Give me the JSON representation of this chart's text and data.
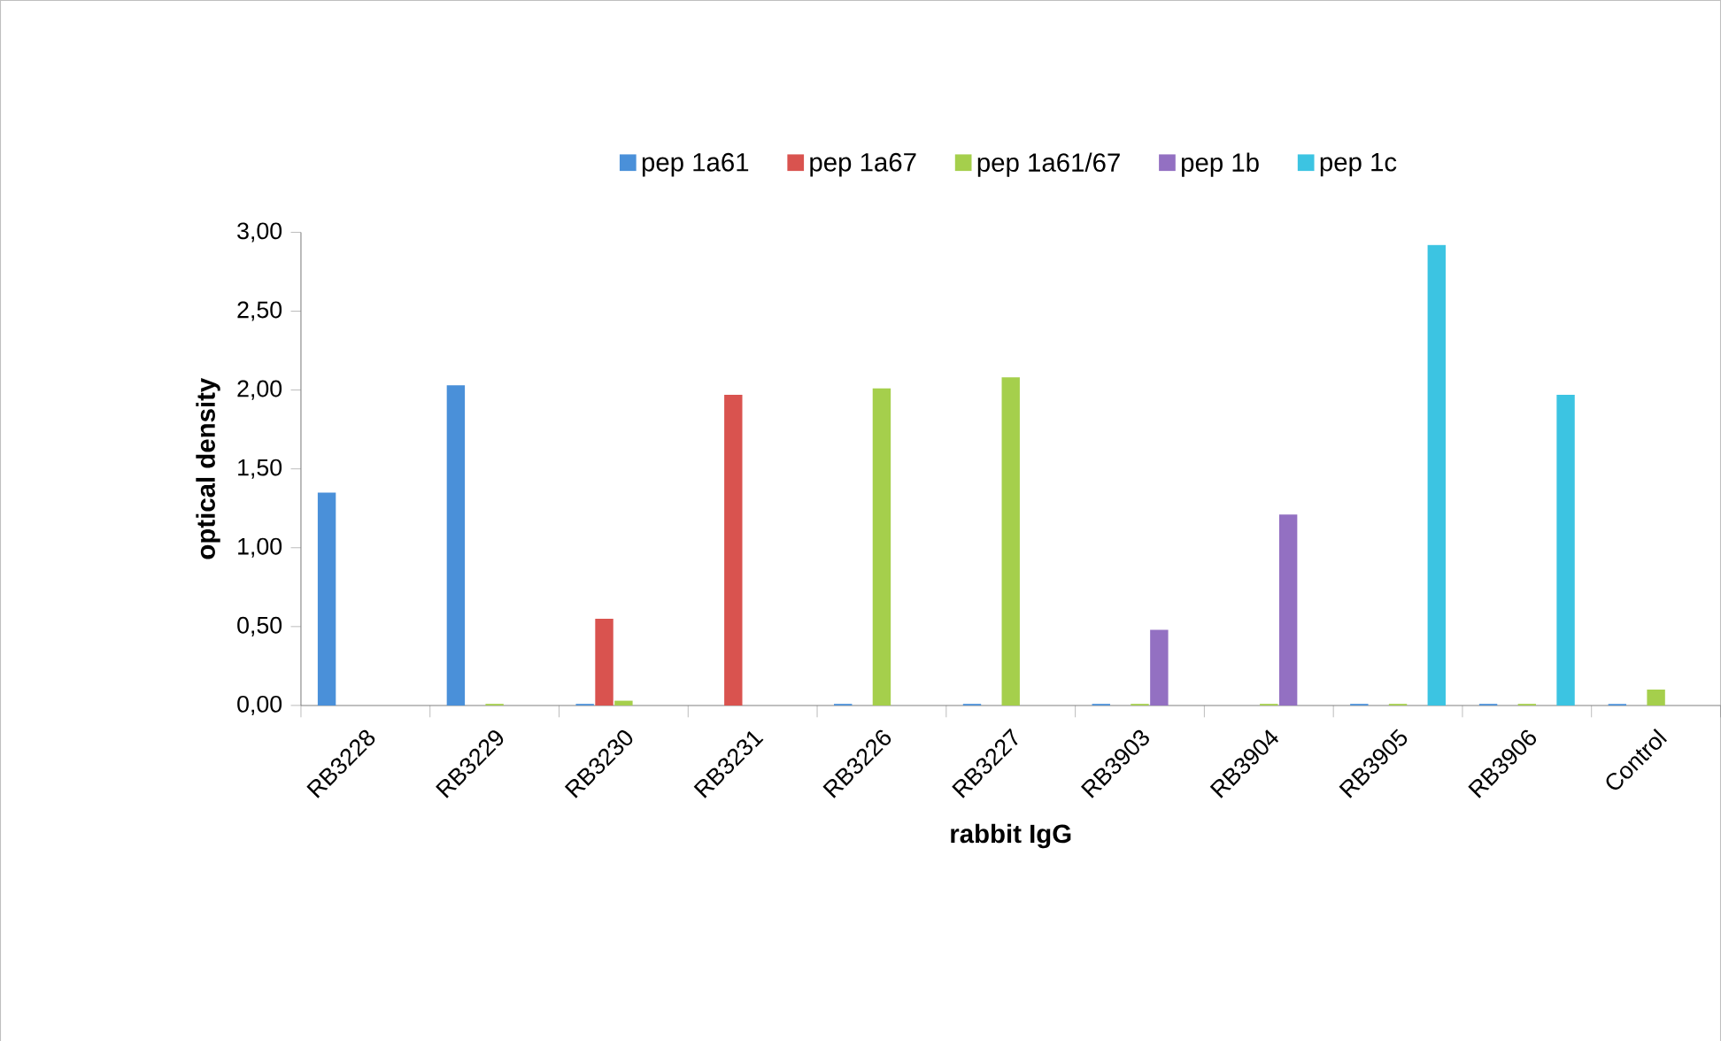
{
  "chart_data": {
    "type": "bar",
    "xlabel": "rabbit IgG",
    "ylabel": "optical density",
    "categories": [
      "RB3228",
      "RB3229",
      "RB3230",
      "RB3231",
      "RB3226",
      "RB3227",
      "RB3903",
      "RB3904",
      "RB3905",
      "RB3906",
      "Control"
    ],
    "series": [
      {
        "name": "pep 1a61",
        "color": "#4a90d9",
        "values": [
          1.35,
          2.03,
          0.01,
          0,
          0.01,
          0.01,
          0.01,
          0,
          0.01,
          0.01,
          0.01
        ]
      },
      {
        "name": "pep 1a67",
        "color": "#d9534f",
        "values": [
          0,
          0,
          0.55,
          1.97,
          0,
          0,
          0,
          0,
          0,
          0,
          0
        ]
      },
      {
        "name": "pep 1a61/67",
        "color": "#a5cf4c",
        "values": [
          0,
          0.01,
          0.03,
          0,
          2.01,
          2.08,
          0.01,
          0.01,
          0.01,
          0.01,
          0.1
        ]
      },
      {
        "name": "pep 1b",
        "color": "#9370c2",
        "values": [
          0,
          0,
          0,
          0,
          0,
          0,
          0.48,
          1.21,
          0,
          0,
          0
        ]
      },
      {
        "name": "pep 1c",
        "color": "#3cc4e2",
        "values": [
          0,
          0,
          0,
          0,
          0,
          0,
          0,
          0,
          2.92,
          1.97,
          0
        ]
      }
    ],
    "ylim": [
      0,
      3
    ],
    "yticks": [
      {
        "value": 0,
        "label": "0,00"
      },
      {
        "value": 0.5,
        "label": "0,50"
      },
      {
        "value": 1,
        "label": "1,00"
      },
      {
        "value": 1.5,
        "label": "1,50"
      },
      {
        "value": 2,
        "label": "2,00"
      },
      {
        "value": 2.5,
        "label": "2,50"
      },
      {
        "value": 3,
        "label": "3,00"
      }
    ],
    "legend": "top",
    "grid": false
  }
}
